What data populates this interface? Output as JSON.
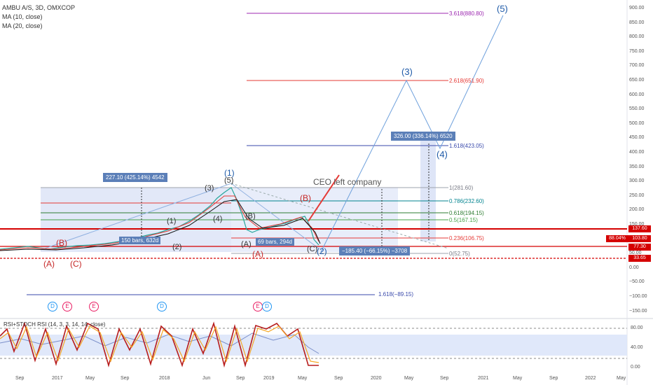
{
  "header": {
    "symbol": "AMBU A/S, 3D, OMXCOP",
    "ma10": "MA (10, close)",
    "ma20": "MA (20, close)"
  },
  "price_axis": {
    "ticks": [
      "900.00",
      "850.00",
      "800.00",
      "750.00",
      "700.00",
      "650.00",
      "600.00",
      "550.00",
      "500.00",
      "450.00",
      "400.00",
      "350.00",
      "300.00",
      "250.00",
      "200.00",
      "150.00",
      "100.00",
      "50.00",
      "0.00",
      "−50.00",
      "−100.00",
      "−150.00"
    ],
    "tags": {
      "resistance": "137.60",
      "pct": "88.04%",
      "last": "103.80",
      "mid": "77.30",
      "support": "33.65"
    }
  },
  "rsi_axis": {
    "ticks": [
      "80.00",
      "40.00",
      "0.00"
    ]
  },
  "time_axis": {
    "labels": [
      "Sep",
      "2017",
      "May",
      "Sep",
      "2018",
      "Jun",
      "Sep",
      "2019",
      "May",
      "Sep",
      "2020",
      "May",
      "Sep",
      "2021",
      "May",
      "Sep",
      "2022",
      "May"
    ]
  },
  "fib_left": {
    "levels": [
      {
        "label": "1.618(−89.15)"
      }
    ]
  },
  "fib_right": {
    "levels": [
      {
        "label": "3.618(880.80)",
        "color": "#9c27b0"
      },
      {
        "label": "2.618(651.90)",
        "color": "#e53935"
      },
      {
        "label": "1.618(423.05)",
        "color": "#3949ab"
      },
      {
        "label": "1(281.60)",
        "color": "#787b86"
      },
      {
        "label": "0.786(232.60)",
        "color": "#00838f"
      },
      {
        "label": "0.618(194.15)",
        "color": "#2e7d32"
      },
      {
        "label": "0.5(167.15)",
        "color": "#43a047"
      },
      {
        "label": "0.236(106.75)",
        "color": "#e53935"
      },
      {
        "label": "0(52.75)",
        "color": "#787b86"
      }
    ]
  },
  "waves": {
    "w1": "(1)",
    "w2": "(2)",
    "w3": "(3)",
    "w4": "(4)",
    "w5": "(5)",
    "sub1": "(1)",
    "sub2": "(2)",
    "sub3": "(3)",
    "sub4": "(4)",
    "sub5": "(5)",
    "A1": "(A)",
    "B1": "(B)",
    "C1": "(C)",
    "A2": "(A)",
    "A3": "(A)",
    "B2": "(B)",
    "B3": "(B)",
    "C2": "(C)"
  },
  "boxes": {
    "range1": "227.10 (425.14%) 4542",
    "bars1": "150 bars, 632d",
    "bars2": "69 bars, 294d",
    "drop": "−185.40 (−66.15%) −3708",
    "gain": "326.00 (336.14%) 6520"
  },
  "note": "CEO left company",
  "events": [
    "D",
    "E",
    "E",
    "D",
    "E",
    "D"
  ],
  "indicator": {
    "title": "RSI+STOCH RSI (14, 3, 3, 14, 14, close)"
  },
  "colors": {
    "blue": "#1e5aa8",
    "red": "#c62828",
    "box": "#5b7fb8"
  }
}
